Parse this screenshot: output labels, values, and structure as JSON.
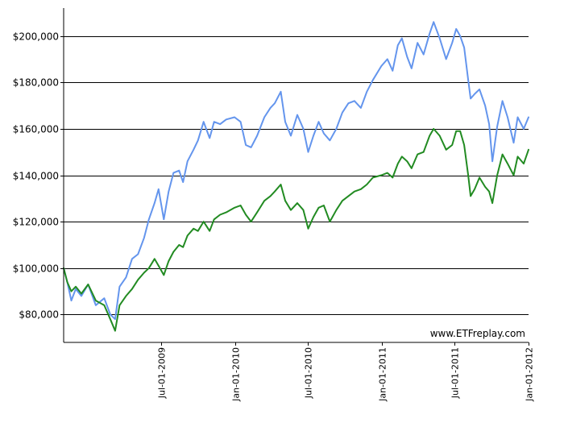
{
  "chart_data": {
    "type": "line",
    "title": "",
    "xlabel": "",
    "ylabel": "",
    "xlim": [
      "2008-11-01",
      "2012-01-01"
    ],
    "ylim": [
      68000,
      212000
    ],
    "grid": "horizontal",
    "y_ticks": [
      80000,
      100000,
      120000,
      140000,
      160000,
      180000,
      200000
    ],
    "y_tick_labels": [
      "$80,000",
      "$100,000",
      "$120,000",
      "$140,000",
      "$160,000",
      "$180,000",
      "$200,000"
    ],
    "x_ticks": [
      "2009-07-01",
      "2010-01-01",
      "2010-07-01",
      "2011-01-01",
      "2011-07-01",
      "2012-01-01"
    ],
    "x_tick_labels": [
      "Jul-01-2009",
      "Jan-01-2010",
      "Jul-01-2010",
      "Jan-01-2011",
      "Jul-01-2011",
      "Jan-01-2012"
    ],
    "watermark": "www.ETFreplay.com",
    "series": [
      {
        "color": "#6495ED",
        "points": [
          [
            "2008-11-01",
            100000
          ],
          [
            "2008-11-10",
            94000
          ],
          [
            "2008-11-20",
            86000
          ],
          [
            "2008-12-01",
            91000
          ],
          [
            "2008-12-15",
            88000
          ],
          [
            "2009-01-01",
            93000
          ],
          [
            "2009-01-20",
            84000
          ],
          [
            "2009-02-10",
            87000
          ],
          [
            "2009-02-25",
            80000
          ],
          [
            "2009-03-09",
            78000
          ],
          [
            "2009-03-20",
            92000
          ],
          [
            "2009-04-05",
            96000
          ],
          [
            "2009-04-20",
            104000
          ],
          [
            "2009-05-05",
            106000
          ],
          [
            "2009-05-20",
            113000
          ],
          [
            "2009-06-01",
            121000
          ],
          [
            "2009-06-15",
            128000
          ],
          [
            "2009-06-25",
            134000
          ],
          [
            "2009-07-08",
            121000
          ],
          [
            "2009-07-20",
            133000
          ],
          [
            "2009-08-01",
            141000
          ],
          [
            "2009-08-15",
            142000
          ],
          [
            "2009-08-25",
            137000
          ],
          [
            "2009-09-05",
            146000
          ],
          [
            "2009-09-20",
            151000
          ],
          [
            "2009-10-01",
            155000
          ],
          [
            "2009-10-15",
            163000
          ],
          [
            "2009-10-30",
            156000
          ],
          [
            "2009-11-10",
            163000
          ],
          [
            "2009-11-25",
            162000
          ],
          [
            "2009-12-10",
            164000
          ],
          [
            "2009-12-31",
            165000
          ],
          [
            "2010-01-15",
            163000
          ],
          [
            "2010-01-28",
            153000
          ],
          [
            "2010-02-10",
            152000
          ],
          [
            "2010-02-25",
            157000
          ],
          [
            "2010-03-15",
            165000
          ],
          [
            "2010-03-30",
            169000
          ],
          [
            "2010-04-10",
            171000
          ],
          [
            "2010-04-25",
            176000
          ],
          [
            "2010-05-06",
            163000
          ],
          [
            "2010-05-20",
            157000
          ],
          [
            "2010-06-05",
            166000
          ],
          [
            "2010-06-20",
            160000
          ],
          [
            "2010-07-02",
            150000
          ],
          [
            "2010-07-15",
            157000
          ],
          [
            "2010-07-28",
            163000
          ],
          [
            "2010-08-10",
            158000
          ],
          [
            "2010-08-25",
            155000
          ],
          [
            "2010-09-10",
            160000
          ],
          [
            "2010-09-25",
            167000
          ],
          [
            "2010-10-10",
            171000
          ],
          [
            "2010-10-25",
            172000
          ],
          [
            "2010-11-10",
            169000
          ],
          [
            "2010-11-25",
            176000
          ],
          [
            "2010-12-10",
            181000
          ],
          [
            "2010-12-31",
            187000
          ],
          [
            "2011-01-15",
            190000
          ],
          [
            "2011-01-28",
            185000
          ],
          [
            "2011-02-10",
            196000
          ],
          [
            "2011-02-20",
            199000
          ],
          [
            "2011-03-05",
            191000
          ],
          [
            "2011-03-16",
            186000
          ],
          [
            "2011-03-31",
            197000
          ],
          [
            "2011-04-15",
            192000
          ],
          [
            "2011-04-30",
            201000
          ],
          [
            "2011-05-10",
            206000
          ],
          [
            "2011-05-25",
            199000
          ],
          [
            "2011-06-10",
            190000
          ],
          [
            "2011-06-25",
            197000
          ],
          [
            "2011-07-05",
            203000
          ],
          [
            "2011-07-15",
            200000
          ],
          [
            "2011-07-25",
            195000
          ],
          [
            "2011-08-04",
            181000
          ],
          [
            "2011-08-10",
            173000
          ],
          [
            "2011-08-20",
            175000
          ],
          [
            "2011-09-01",
            177000
          ],
          [
            "2011-09-15",
            170000
          ],
          [
            "2011-09-25",
            162000
          ],
          [
            "2011-10-03",
            146000
          ],
          [
            "2011-10-15",
            161000
          ],
          [
            "2011-10-28",
            172000
          ],
          [
            "2011-11-10",
            165000
          ],
          [
            "2011-11-25",
            154000
          ],
          [
            "2011-12-05",
            165000
          ],
          [
            "2011-12-20",
            160000
          ],
          [
            "2012-01-01",
            165000
          ]
        ]
      },
      {
        "color": "#228B22",
        "points": [
          [
            "2008-11-01",
            100000
          ],
          [
            "2008-11-10",
            94000
          ],
          [
            "2008-11-20",
            90000
          ],
          [
            "2008-12-01",
            92000
          ],
          [
            "2008-12-15",
            89000
          ],
          [
            "2009-01-01",
            93000
          ],
          [
            "2009-01-20",
            86000
          ],
          [
            "2009-02-10",
            84000
          ],
          [
            "2009-02-25",
            78000
          ],
          [
            "2009-03-09",
            73000
          ],
          [
            "2009-03-20",
            84000
          ],
          [
            "2009-04-05",
            88000
          ],
          [
            "2009-04-20",
            91000
          ],
          [
            "2009-05-05",
            95000
          ],
          [
            "2009-05-20",
            98000
          ],
          [
            "2009-06-01",
            100000
          ],
          [
            "2009-06-15",
            104000
          ],
          [
            "2009-06-25",
            101000
          ],
          [
            "2009-07-08",
            97000
          ],
          [
            "2009-07-20",
            103000
          ],
          [
            "2009-08-01",
            107000
          ],
          [
            "2009-08-15",
            110000
          ],
          [
            "2009-08-25",
            109000
          ],
          [
            "2009-09-05",
            114000
          ],
          [
            "2009-09-20",
            117000
          ],
          [
            "2009-10-01",
            116000
          ],
          [
            "2009-10-15",
            120000
          ],
          [
            "2009-10-30",
            116000
          ],
          [
            "2009-11-10",
            121000
          ],
          [
            "2009-11-25",
            123000
          ],
          [
            "2009-12-10",
            124000
          ],
          [
            "2009-12-31",
            126000
          ],
          [
            "2010-01-15",
            127000
          ],
          [
            "2010-01-28",
            123000
          ],
          [
            "2010-02-10",
            120000
          ],
          [
            "2010-02-25",
            124000
          ],
          [
            "2010-03-15",
            129000
          ],
          [
            "2010-03-30",
            131000
          ],
          [
            "2010-04-10",
            133000
          ],
          [
            "2010-04-25",
            136000
          ],
          [
            "2010-05-06",
            129000
          ],
          [
            "2010-05-20",
            125000
          ],
          [
            "2010-06-05",
            128000
          ],
          [
            "2010-06-20",
            125000
          ],
          [
            "2010-07-02",
            117000
          ],
          [
            "2010-07-15",
            122000
          ],
          [
            "2010-07-28",
            126000
          ],
          [
            "2010-08-10",
            127000
          ],
          [
            "2010-08-25",
            120000
          ],
          [
            "2010-09-10",
            125000
          ],
          [
            "2010-09-25",
            129000
          ],
          [
            "2010-10-10",
            131000
          ],
          [
            "2010-10-25",
            133000
          ],
          [
            "2010-11-10",
            134000
          ],
          [
            "2010-11-25",
            136000
          ],
          [
            "2010-12-10",
            139000
          ],
          [
            "2010-12-31",
            140000
          ],
          [
            "2011-01-15",
            141000
          ],
          [
            "2011-01-28",
            139000
          ],
          [
            "2011-02-10",
            145000
          ],
          [
            "2011-02-20",
            148000
          ],
          [
            "2011-03-05",
            146000
          ],
          [
            "2011-03-16",
            143000
          ],
          [
            "2011-03-31",
            149000
          ],
          [
            "2011-04-15",
            150000
          ],
          [
            "2011-04-30",
            157000
          ],
          [
            "2011-05-10",
            160000
          ],
          [
            "2011-05-25",
            157000
          ],
          [
            "2011-06-10",
            151000
          ],
          [
            "2011-06-25",
            153000
          ],
          [
            "2011-07-05",
            159000
          ],
          [
            "2011-07-15",
            159000
          ],
          [
            "2011-07-25",
            153000
          ],
          [
            "2011-08-04",
            140000
          ],
          [
            "2011-08-10",
            131000
          ],
          [
            "2011-08-20",
            134000
          ],
          [
            "2011-09-01",
            139000
          ],
          [
            "2011-09-15",
            135000
          ],
          [
            "2011-09-25",
            133000
          ],
          [
            "2011-10-03",
            128000
          ],
          [
            "2011-10-15",
            140000
          ],
          [
            "2011-10-28",
            149000
          ],
          [
            "2011-11-10",
            145000
          ],
          [
            "2011-11-25",
            140000
          ],
          [
            "2011-12-05",
            148000
          ],
          [
            "2011-12-20",
            145000
          ],
          [
            "2012-01-01",
            151000
          ]
        ]
      }
    ]
  }
}
